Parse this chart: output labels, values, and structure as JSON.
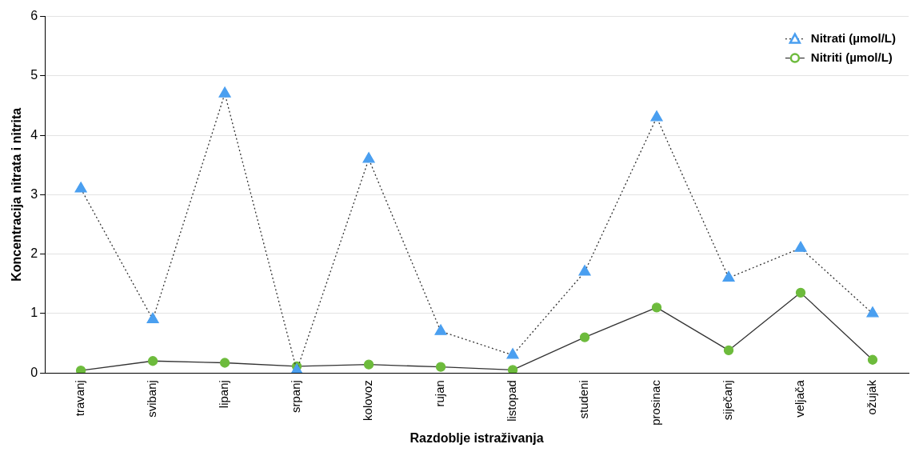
{
  "chart_data": {
    "type": "line",
    "xlabel": "Razdoblje istraživanja",
    "ylabel": "Koncentracija nitrata i nitrita",
    "categories": [
      "travanj",
      "svibanj",
      "lipanj",
      "srpanj",
      "kolovoz",
      "rujan",
      "listopad",
      "studeni",
      "prosinac",
      "siječanj",
      "veljača",
      "ožujak"
    ],
    "series": [
      {
        "name": "Nitrati (µmol/L)",
        "color": "#4a9ff0",
        "marker": "triangle",
        "line_style": "dotted",
        "values": [
          3.1,
          0.9,
          4.7,
          0.04,
          3.6,
          0.7,
          0.3,
          1.7,
          4.3,
          1.6,
          2.1,
          1.0
        ]
      },
      {
        "name": "Nitriti (µmol/L)",
        "color": "#6dbb3c",
        "marker": "circle",
        "line_style": "solid",
        "values": [
          0.04,
          0.2,
          0.17,
          0.11,
          0.14,
          0.1,
          0.05,
          0.6,
          1.1,
          0.38,
          1.35,
          0.22
        ]
      }
    ],
    "ylim": [
      0,
      6
    ],
    "yticks": [
      0,
      1,
      2,
      3,
      4,
      5,
      6
    ],
    "grid": "y",
    "legend": "top right"
  }
}
